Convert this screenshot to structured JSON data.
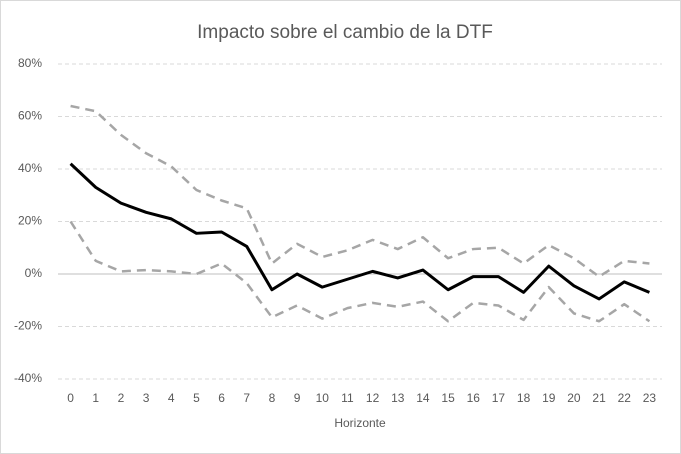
{
  "chart_data": {
    "type": "line",
    "title": "Impacto sobre el cambio de la DTF",
    "x_label": "Horizonte",
    "categories": [
      0,
      1,
      2,
      3,
      4,
      5,
      6,
      7,
      8,
      9,
      10,
      11,
      12,
      13,
      14,
      15,
      16,
      17,
      18,
      19,
      20,
      21,
      22,
      23
    ],
    "series": [
      {
        "color": "#a6a6a6",
        "dashed": true,
        "values": [
          64,
          62,
          53,
          46,
          41,
          32,
          28,
          25,
          4,
          11.5,
          6.5,
          9,
          13,
          9.5,
          14,
          6,
          9.5,
          10,
          4,
          11,
          6,
          -1,
          5,
          4
        ]
      },
      {
        "color": "#a6a6a6",
        "dashed": true,
        "values": [
          20,
          5,
          1,
          1.5,
          1,
          0,
          4,
          -3.5,
          -16.5,
          -12,
          -17,
          -13,
          -11,
          -12.5,
          -10.5,
          -18,
          -11,
          -12,
          -17.5,
          -5,
          -15,
          -18,
          -11.5,
          -18
        ]
      },
      {
        "color": "#000000",
        "dashed": false,
        "values": [
          42,
          33,
          27,
          23.5,
          21,
          15.5,
          16,
          10.5,
          -6,
          0,
          -5,
          -2,
          1,
          -1.5,
          1.5,
          -6,
          -1,
          -1,
          -7,
          3,
          -4.5,
          -9.5,
          -3,
          -7
        ]
      }
    ],
    "ylim": [
      -40,
      80
    ],
    "yticks": [
      {
        "value": -40,
        "label": "-40%"
      },
      {
        "value": -20,
        "label": "-20%"
      },
      {
        "value": 0,
        "label": "0%"
      },
      {
        "value": 20,
        "label": "20%"
      },
      {
        "value": 40,
        "label": "40%"
      },
      {
        "value": 60,
        "label": "60%"
      },
      {
        "value": 80,
        "label": "80%"
      }
    ],
    "grid": true
  }
}
